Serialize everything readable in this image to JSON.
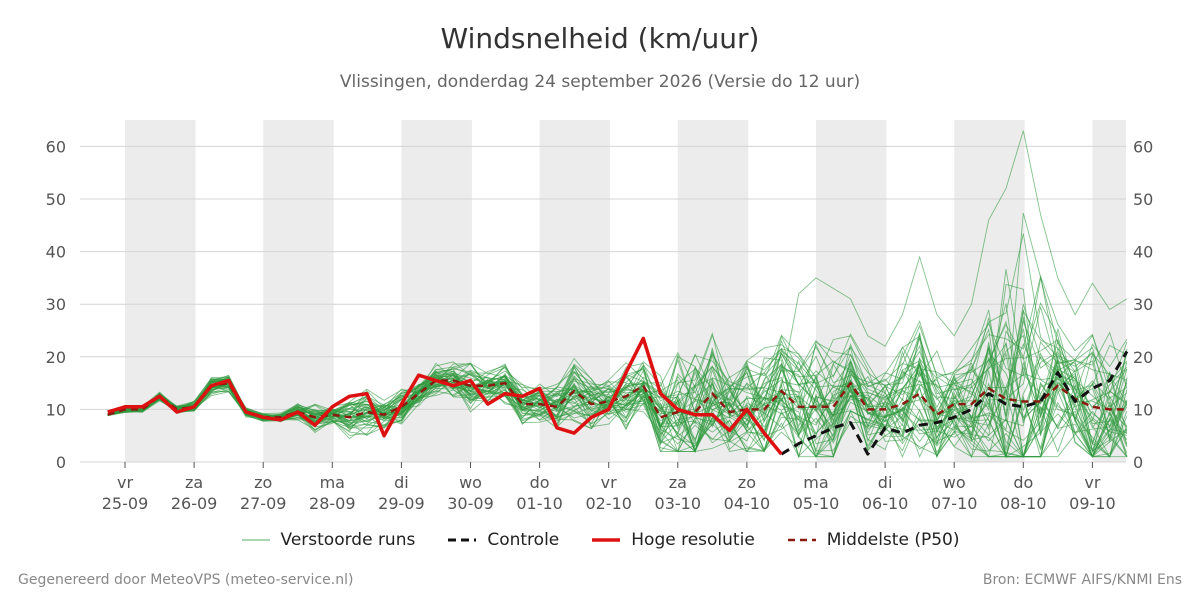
{
  "chart_data": {
    "type": "line",
    "title": "Windsnelheid (km/uur)",
    "subtitle": "Vlissingen, donderdag 24 september 2026 (Versie do 12 uur)",
    "ylim": [
      0,
      65
    ],
    "yticks": [
      0,
      10,
      20,
      30,
      40,
      50,
      60
    ],
    "grid": true,
    "legend_position": "bottom",
    "x_range_days": [
      -0.25,
      14.5
    ],
    "xticks": [
      {
        "day": "vr",
        "date": "25-09"
      },
      {
        "day": "za",
        "date": "26-09"
      },
      {
        "day": "zo",
        "date": "27-09"
      },
      {
        "day": "ma",
        "date": "28-09"
      },
      {
        "day": "di",
        "date": "29-09"
      },
      {
        "day": "wo",
        "date": "30-09"
      },
      {
        "day": "do",
        "date": "01-10"
      },
      {
        "day": "vr",
        "date": "02-10"
      },
      {
        "day": "za",
        "date": "03-10"
      },
      {
        "day": "zo",
        "date": "04-10"
      },
      {
        "day": "ma",
        "date": "05-10"
      },
      {
        "day": "di",
        "date": "06-10"
      },
      {
        "day": "wo",
        "date": "07-10"
      },
      {
        "day": "do",
        "date": "08-10"
      },
      {
        "day": "vr",
        "date": "09-10"
      }
    ],
    "series": [
      {
        "name": "Hoge resolutie",
        "color": "#dd1111",
        "style": "solid",
        "x": [
          -0.25,
          0,
          0.25,
          0.5,
          0.75,
          1,
          1.25,
          1.5,
          1.75,
          2,
          2.25,
          2.5,
          2.75,
          3,
          3.25,
          3.5,
          3.75,
          4,
          4.25,
          4.5,
          4.75,
          5,
          5.25,
          5.5,
          5.75,
          6,
          6.25,
          6.5,
          6.75,
          7,
          7.25,
          7.5,
          7.75,
          8,
          8.25,
          8.5,
          8.75,
          9,
          9.25,
          9.5
        ],
        "values": [
          9.5,
          10.5,
          10.5,
          12.5,
          9.5,
          10.5,
          14.5,
          15.5,
          9.5,
          8.5,
          8,
          9.5,
          7,
          10.5,
          12.5,
          13,
          5,
          11,
          16.5,
          15.5,
          14.5,
          15.5,
          11,
          13,
          12.5,
          14,
          6.5,
          5.5,
          8.5,
          10,
          17,
          23.5,
          13,
          10,
          9,
          9,
          6,
          10,
          5.5,
          1.5
        ]
      },
      {
        "name": "Controle",
        "color": "#111111",
        "style": "dashed",
        "x": [
          9.5,
          9.75,
          10,
          10.25,
          10.5,
          10.75,
          11,
          11.25,
          11.5,
          11.75,
          12,
          12.25,
          12.5,
          12.75,
          13,
          13.25,
          13.5,
          13.75,
          14,
          14.25,
          14.5
        ],
        "values": [
          1.5,
          3.5,
          5,
          6.5,
          7.5,
          1.5,
          6.5,
          5.5,
          7,
          7.5,
          8.5,
          10,
          13,
          11,
          10.5,
          11.5,
          17,
          11.5,
          14,
          15.5,
          21
        ]
      },
      {
        "name": "Middelste (P50)",
        "color": "#8b1a10",
        "style": "dashed",
        "x": [
          -0.25,
          0,
          0.25,
          0.5,
          0.75,
          1,
          1.25,
          1.5,
          1.75,
          2,
          2.25,
          2.5,
          2.75,
          3,
          3.25,
          3.5,
          3.75,
          4,
          4.25,
          4.5,
          4.75,
          5,
          5.25,
          5.5,
          5.75,
          6,
          6.25,
          6.5,
          6.75,
          7,
          7.25,
          7.5,
          7.75,
          8,
          8.25,
          8.5,
          8.75,
          9,
          9.25,
          9.5,
          9.75,
          10,
          10.25,
          10.5,
          10.75,
          11,
          11.25,
          11.5,
          11.75,
          12,
          12.25,
          12.5,
          12.75,
          13,
          13.25,
          13.5,
          13.75,
          14,
          14.25,
          14.5
        ],
        "values": [
          9,
          10,
          10,
          12.5,
          10,
          10.5,
          14.5,
          15,
          9.5,
          8.5,
          8.5,
          9.5,
          8.5,
          9,
          8.5,
          9.5,
          9,
          10.5,
          13,
          15.5,
          15.5,
          14.5,
          14.5,
          15,
          11,
          11,
          10.5,
          13.5,
          11,
          11.5,
          12.5,
          14.5,
          8.5,
          9.5,
          9.5,
          13,
          9.5,
          10,
          10,
          13.5,
          10.5,
          10.5,
          10.5,
          15,
          10,
          10,
          11,
          13,
          9,
          11,
          11,
          14,
          12,
          11.5,
          11.5,
          14.5,
          12,
          10.5,
          10,
          10
        ]
      },
      {
        "name": "Verstoorde runs",
        "color": "#2e9a3e",
        "style": "thin",
        "run_count": 50,
        "envelope_low": [
          7.5,
          8,
          8,
          9,
          6.5,
          7,
          9,
          8,
          6,
          5.5,
          5.5,
          4,
          3,
          4,
          3,
          3,
          2,
          4,
          6,
          7,
          8,
          8,
          6,
          5,
          4,
          5,
          3,
          2,
          3,
          3,
          4,
          3,
          2,
          2,
          2,
          2,
          2,
          2,
          2,
          2,
          1,
          1,
          1,
          1,
          1,
          1,
          1,
          1,
          1,
          1,
          1,
          1,
          1,
          1,
          1,
          1,
          1,
          1,
          1,
          1
        ],
        "envelope_high": [
          10.5,
          13.5,
          13,
          17,
          13.5,
          15,
          22.5,
          20,
          12,
          11,
          11,
          14,
          18,
          15,
          22,
          23,
          17,
          21,
          18,
          24,
          27,
          28,
          22,
          25,
          21,
          20,
          22,
          27.5,
          22,
          22,
          27,
          26,
          27,
          35,
          36,
          35,
          24,
          30,
          33,
          35.5,
          32,
          35,
          33,
          31,
          24,
          22,
          28,
          39,
          28,
          24,
          30,
          46,
          52,
          63,
          47,
          35,
          28,
          34,
          29,
          31
        ]
      }
    ],
    "legend": [
      {
        "label": "Verstoorde runs",
        "color": "#2e9a3e",
        "style": "thin"
      },
      {
        "label": "Controle",
        "color": "#111111",
        "style": "dashed"
      },
      {
        "label": "Hoge resolutie",
        "color": "#dd1111",
        "style": "solid"
      },
      {
        "label": "Middelste (P50)",
        "color": "#8b1a10",
        "style": "dashed"
      }
    ]
  },
  "footer": {
    "left": "Gegenereerd door MeteoVPS (meteo-service.nl)",
    "right": "Bron: ECMWF AIFS/KNMI Ens"
  }
}
